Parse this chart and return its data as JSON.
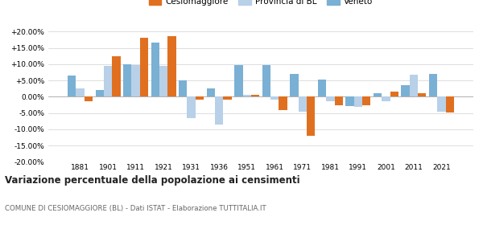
{
  "years": [
    1881,
    1901,
    1911,
    1921,
    1931,
    1936,
    1951,
    1961,
    1971,
    1981,
    1991,
    2001,
    2011,
    2021
  ],
  "cesiomaggiore": [
    -1.5,
    12.5,
    18.0,
    18.5,
    -1.0,
    -1.0,
    0.5,
    -4.0,
    -12.0,
    -2.5,
    -2.5,
    1.5,
    1.2,
    -4.8
  ],
  "provincia_bl": [
    2.5,
    9.5,
    9.8,
    9.5,
    -6.5,
    -8.5,
    0.5,
    -1.0,
    -4.5,
    -1.5,
    -3.0,
    -1.5,
    6.8,
    -4.5
  ],
  "veneto": [
    6.5,
    2.0,
    10.0,
    16.5,
    5.0,
    2.5,
    9.8,
    9.8,
    7.0,
    5.2,
    -2.8,
    1.0,
    3.5,
    7.0
  ],
  "color_cesio": "#e07020",
  "color_prov": "#b8d0e8",
  "color_veneto": "#7ab0d4",
  "title": "Variazione percentuale della popolazione ai censimenti",
  "subtitle": "COMUNE DI CESIOMAGGIORE (BL) - Dati ISTAT - Elaborazione TUTTITALIA.IT",
  "ylim": [
    -20,
    20
  ],
  "yticks": [
    -20,
    -15,
    -10,
    -5,
    0,
    5,
    10,
    15,
    20
  ],
  "bar_width": 0.3
}
